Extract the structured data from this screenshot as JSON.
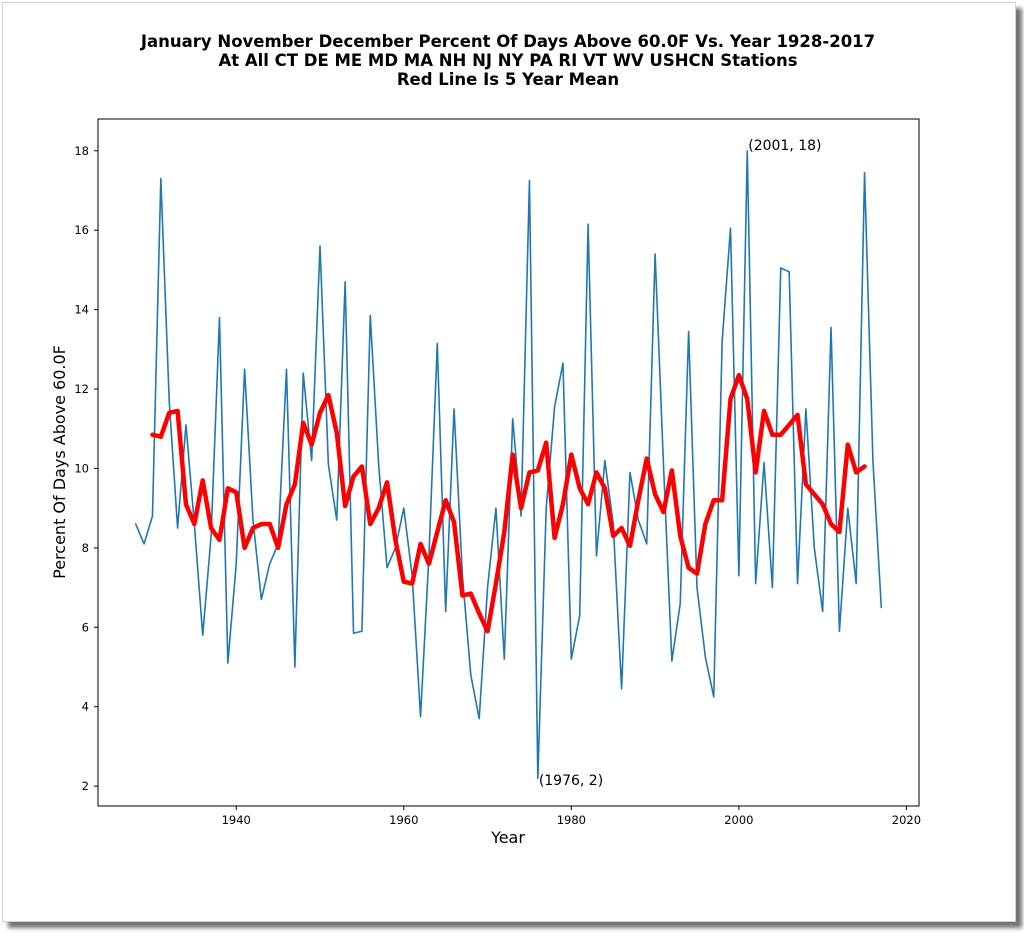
{
  "chart_data": {
    "type": "line",
    "title_lines": [
      "January November December Percent Of Days Above 60.0F Vs. Year 1928-2017",
      "At All CT DE ME MD MA NH NJ NY PA RI VT WV USHCN Stations",
      "Red Line Is 5 Year Mean"
    ],
    "xlabel": "Year",
    "ylabel": "Percent Of Days Above 60.0F",
    "xlim": [
      1923.5,
      2021.5
    ],
    "ylim": [
      1.5,
      18.8
    ],
    "xticks": [
      1940,
      1960,
      1980,
      2000,
      2020
    ],
    "yticks": [
      2,
      4,
      6,
      8,
      10,
      12,
      14,
      16,
      18
    ],
    "grid": false,
    "colors": {
      "series": "#1f77b4",
      "mean": "#ff0000"
    },
    "series": [
      {
        "x": [
          1928,
          1929,
          1930,
          1931,
          1932,
          1933,
          1934,
          1935,
          1936,
          1937,
          1938,
          1939,
          1940,
          1941,
          1942,
          1943,
          1944,
          1945,
          1946,
          1947,
          1948,
          1949,
          1950,
          1951,
          1952,
          1953,
          1954,
          1955,
          1956,
          1957,
          1958,
          1959,
          1960,
          1961,
          1962,
          1963,
          1964,
          1965,
          1966,
          1967,
          1968,
          1969,
          1970,
          1971,
          1972,
          1973,
          1974,
          1975,
          1976,
          1977,
          1978,
          1979,
          1980,
          1981,
          1982,
          1983,
          1984,
          1985,
          1986,
          1987,
          1988,
          1989,
          1990,
          1991,
          1992,
          1993,
          1994,
          1995,
          1996,
          1997,
          1998,
          1999,
          2000,
          2001,
          2002,
          2003,
          2004,
          2005,
          2006,
          2007,
          2008,
          2009,
          2010,
          2011,
          2012,
          2013,
          2014,
          2015,
          2016,
          2017
        ],
        "values": [
          8.6,
          8.1,
          8.8,
          17.3,
          11.7,
          8.5,
          11.1,
          8.6,
          5.8,
          8.3,
          13.8,
          5.1,
          7.6,
          12.5,
          8.7,
          6.7,
          7.6,
          8.1,
          12.5,
          5.0,
          12.4,
          10.2,
          15.6,
          10.1,
          8.7,
          14.7,
          5.85,
          5.9,
          13.85,
          10.1,
          7.5,
          8.0,
          9.0,
          7.3,
          3.75,
          7.8,
          13.15,
          6.4,
          11.5,
          7.3,
          4.8,
          3.7,
          7.0,
          9.0,
          5.2,
          11.25,
          8.8,
          17.25,
          2.2,
          9.0,
          11.55,
          12.65,
          5.2,
          6.3,
          16.15,
          7.8,
          10.2,
          8.6,
          4.45,
          9.9,
          8.7,
          8.1,
          15.4,
          10.1,
          5.15,
          6.6,
          13.45,
          7.0,
          5.25,
          4.25,
          13.2,
          16.05,
          7.3,
          18.0,
          7.1,
          10.15,
          7.0,
          15.05,
          14.95,
          7.1,
          11.5,
          8.0,
          6.4,
          13.55,
          5.9,
          9.0,
          7.1,
          17.45,
          10.2,
          6.5
        ]
      },
      {
        "name": "5 Year Mean",
        "x": [
          1930,
          1931,
          1932,
          1933,
          1934,
          1935,
          1936,
          1937,
          1938,
          1939,
          1940,
          1941,
          1942,
          1943,
          1944,
          1945,
          1946,
          1947,
          1948,
          1949,
          1950,
          1951,
          1952,
          1953,
          1954,
          1955,
          1956,
          1957,
          1958,
          1959,
          1960,
          1961,
          1962,
          1963,
          1964,
          1965,
          1966,
          1967,
          1968,
          1969,
          1970,
          1971,
          1972,
          1973,
          1974,
          1975,
          1976,
          1977,
          1978,
          1979,
          1980,
          1981,
          1982,
          1983,
          1984,
          1985,
          1986,
          1987,
          1988,
          1989,
          1990,
          1991,
          1992,
          1993,
          1994,
          1995,
          1996,
          1997,
          1998,
          1999,
          2000,
          2001,
          2002,
          2003,
          2004,
          2005,
          2006,
          2007,
          2008,
          2009,
          2010,
          2011,
          2012,
          2013,
          2014,
          2015
        ],
        "values": [
          10.85,
          10.8,
          11.4,
          11.45,
          9.1,
          8.6,
          9.7,
          8.5,
          8.2,
          9.5,
          9.4,
          8.0,
          8.5,
          8.6,
          8.6,
          8.0,
          9.1,
          9.6,
          11.15,
          10.6,
          11.4,
          11.85,
          10.9,
          9.05,
          9.8,
          10.05,
          8.6,
          9.0,
          9.65,
          8.2,
          7.15,
          7.1,
          8.1,
          7.6,
          8.4,
          9.2,
          8.65,
          6.8,
          6.85,
          6.35,
          5.9,
          7.1,
          8.4,
          10.35,
          9.0,
          9.9,
          9.95,
          10.65,
          8.25,
          9.1,
          10.35,
          9.5,
          9.1,
          9.9,
          9.5,
          8.3,
          8.5,
          8.05,
          9.2,
          10.25,
          9.35,
          8.9,
          9.95,
          8.3,
          7.5,
          7.35,
          8.6,
          9.2,
          9.2,
          11.75,
          12.35,
          11.75,
          9.9,
          11.45,
          10.85,
          10.85,
          11.1,
          11.35,
          9.6,
          9.35,
          9.1,
          8.6,
          8.4,
          10.6,
          9.9,
          10.05
        ]
      }
    ],
    "annotations": [
      {
        "text": "(2001, 18)",
        "x": 2001,
        "y": 18
      },
      {
        "text": "(1976, 2)",
        "x": 1976,
        "y": 2
      }
    ]
  }
}
